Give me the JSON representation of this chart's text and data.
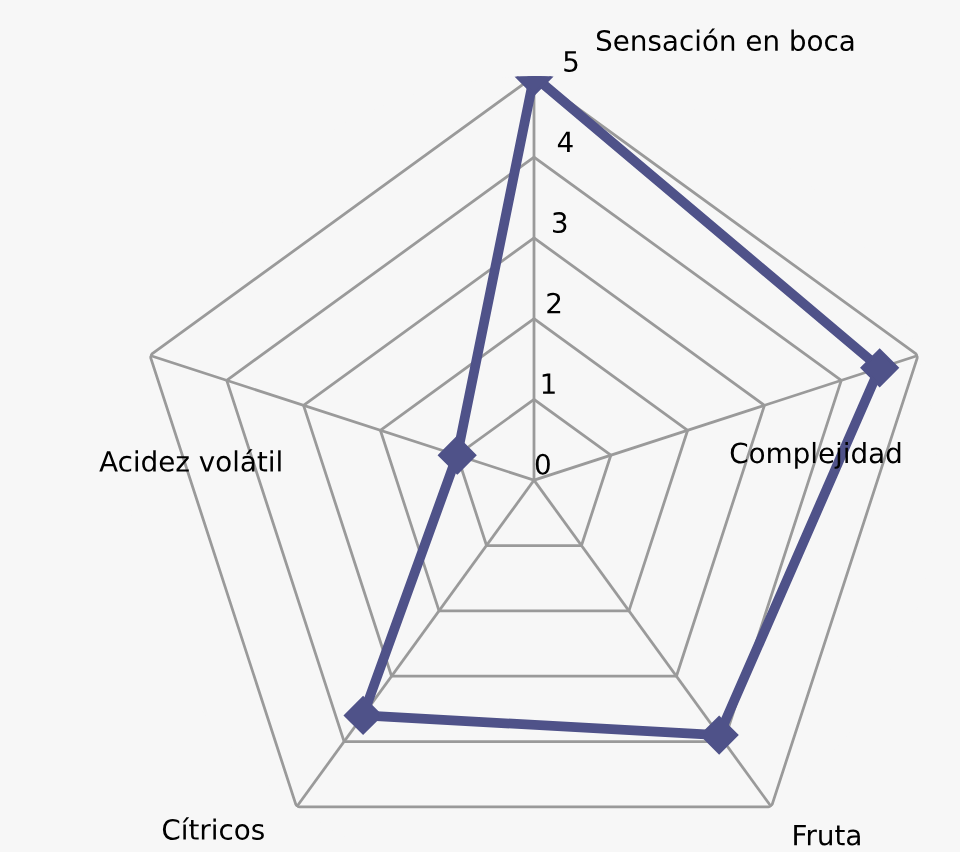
{
  "chart_data": {
    "type": "radar",
    "categories": [
      "Sensación en boca",
      "Complejidad",
      "Fruta",
      "Cítricos",
      "Acidez volátil"
    ],
    "series": [
      {
        "color": "#4f5289",
        "values": [
          5,
          4.5,
          3.9,
          3.6,
          1.0
        ]
      }
    ],
    "ylim": [
      0,
      5
    ],
    "yticks": [
      0,
      1,
      2,
      3,
      4,
      5
    ],
    "grid": true,
    "marker": "diamond",
    "line_style": "solid",
    "legend": false
  }
}
